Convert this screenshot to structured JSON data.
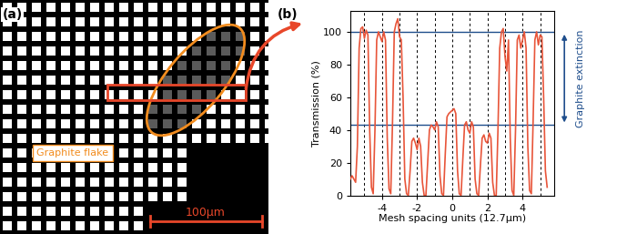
{
  "image_panel": {
    "label": "(a)",
    "annotation": "Graphite flake",
    "scale_bar": "100μm"
  },
  "chart_data": {
    "type": "line",
    "label": "(b)",
    "x_label": "Mesh spacing units (12.7μm)",
    "y_label": "Transmission (%)",
    "x": [
      -5.8,
      -5.7,
      -5.6,
      -5.5,
      -5.4,
      -5.3,
      -5.2,
      -5.1,
      -5.0,
      -4.9,
      -4.8,
      -4.7,
      -4.6,
      -4.5,
      -4.4,
      -4.3,
      -4.2,
      -4.1,
      -4.0,
      -3.9,
      -3.8,
      -3.7,
      -3.6,
      -3.5,
      -3.4,
      -3.3,
      -3.2,
      -3.1,
      -3.0,
      -2.9,
      -2.8,
      -2.7,
      -2.6,
      -2.5,
      -2.4,
      -2.3,
      -2.2,
      -2.1,
      -2.0,
      -1.9,
      -1.8,
      -1.7,
      -1.6,
      -1.5,
      -1.4,
      -1.3,
      -1.2,
      -1.1,
      -1.0,
      -0.9,
      -0.8,
      -0.7,
      -0.6,
      -0.5,
      -0.4,
      -0.3,
      -0.2,
      -0.1,
      0.0,
      0.1,
      0.2,
      0.3,
      0.4,
      0.5,
      0.6,
      0.7,
      0.8,
      0.9,
      1.0,
      1.1,
      1.2,
      1.3,
      1.4,
      1.5,
      1.6,
      1.7,
      1.8,
      1.9,
      2.0,
      2.1,
      2.2,
      2.3,
      2.4,
      2.5,
      2.6,
      2.7,
      2.8,
      2.9,
      3.0,
      3.1,
      3.2,
      3.3,
      3.4,
      3.5,
      3.6,
      3.7,
      3.8,
      3.9,
      4.0,
      4.1,
      4.2,
      4.3,
      4.4,
      4.5,
      4.6,
      4.7,
      4.8,
      4.9,
      5.0,
      5.1,
      5.2,
      5.3,
      5.4
    ],
    "values": [
      10,
      12,
      10,
      8,
      30,
      90,
      102,
      103,
      96,
      101,
      98,
      40,
      5,
      1,
      40,
      95,
      100,
      97,
      94,
      100,
      95,
      35,
      4,
      1,
      45,
      100,
      105,
      108,
      97,
      95,
      60,
      10,
      1,
      0,
      15,
      33,
      35,
      32,
      28,
      35,
      30,
      8,
      0,
      0,
      20,
      40,
      43,
      42,
      40,
      45,
      42,
      12,
      1,
      0,
      25,
      48,
      50,
      51,
      52,
      53,
      50,
      15,
      1,
      0,
      22,
      43,
      45,
      40,
      38,
      45,
      42,
      10,
      1,
      0,
      18,
      35,
      37,
      33,
      32,
      38,
      35,
      8,
      0,
      0,
      40,
      90,
      100,
      102,
      85,
      76,
      95,
      35,
      3,
      0,
      40,
      95,
      98,
      90,
      95,
      100,
      90,
      30,
      3,
      1,
      45,
      95,
      100,
      92,
      98,
      97,
      60,
      15,
      5
    ],
    "color": "#e8553a",
    "xlim": [
      -5.8,
      5.8
    ],
    "ylim": [
      0,
      113
    ],
    "xticks": [
      -4,
      -2,
      0,
      2,
      4
    ],
    "yticks": [
      0,
      20,
      40,
      60,
      80,
      100
    ],
    "vlines": [
      -5,
      -4,
      -3,
      -2,
      -1,
      0,
      1,
      2,
      3,
      4,
      5
    ],
    "hlines": [
      100,
      43
    ],
    "annotation": "Graphite extinction",
    "grid": false
  }
}
